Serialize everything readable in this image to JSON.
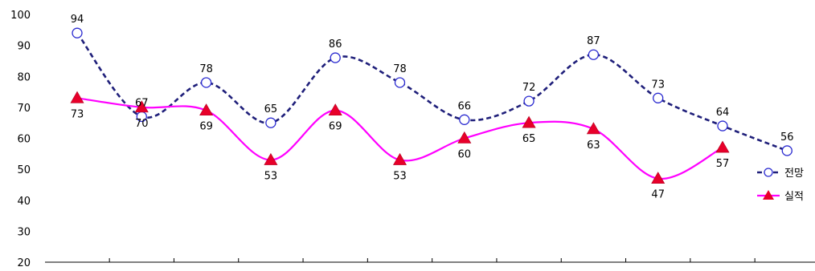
{
  "chart_data": {
    "type": "line",
    "ylim": [
      20,
      100
    ],
    "yticks": [
      20,
      30,
      40,
      50,
      60,
      70,
      80,
      90,
      100
    ],
    "grid": false,
    "legend_position": "right",
    "series": [
      {
        "name": "전망",
        "color": "#1f1f7a",
        "style": "dashed",
        "marker": "open-circle",
        "marker_color": "#2a2ad0",
        "values": [
          94,
          67,
          78,
          65,
          86,
          78,
          66,
          72,
          87,
          73,
          64,
          56
        ]
      },
      {
        "name": "실적",
        "color": "#ff00ff",
        "style": "solid",
        "marker": "triangle",
        "marker_color": "#e8002a",
        "values": [
          73,
          70,
          69,
          53,
          69,
          53,
          60,
          65,
          63,
          47,
          57,
          null
        ]
      }
    ]
  }
}
